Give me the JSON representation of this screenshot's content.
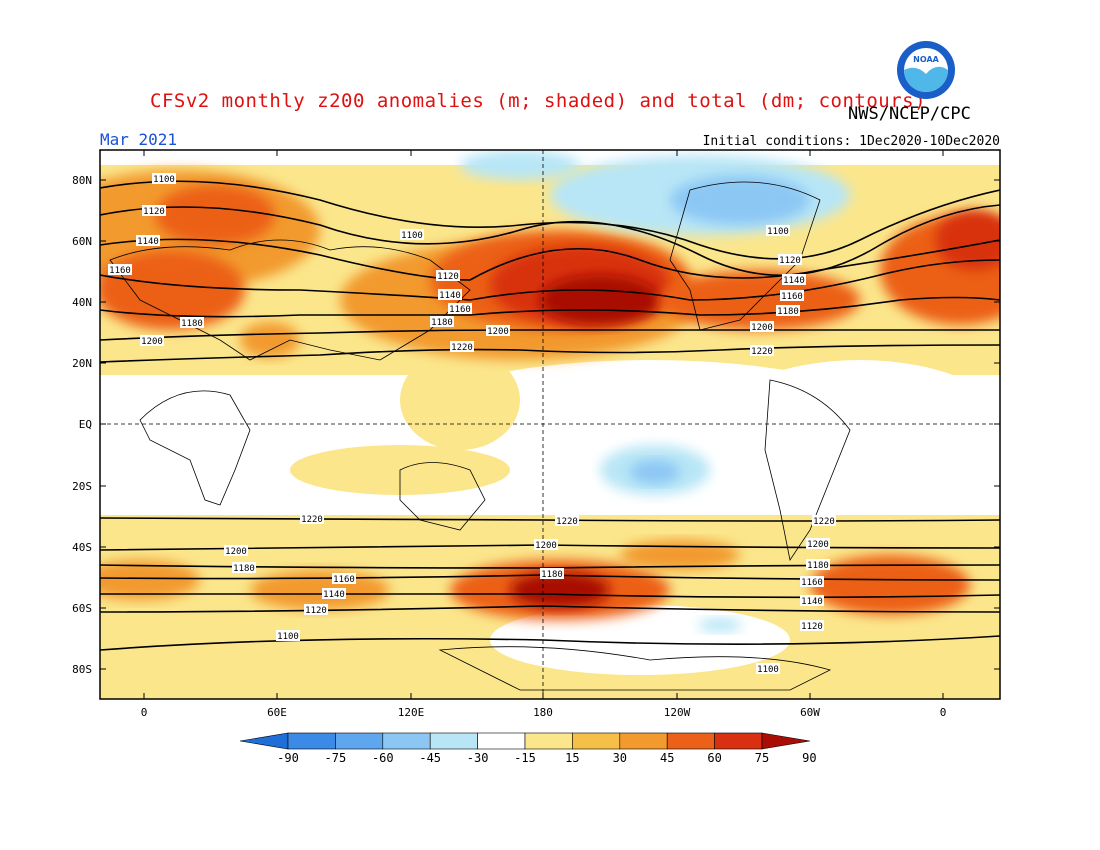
{
  "header": {
    "title": "CFSv2 monthly z200 anomalies (m; shaded) and total (dm; contours)",
    "agency": "NWS/NCEP/CPC",
    "month": "Mar 2021",
    "initial_conditions": "Initial conditions: 1Dec2020-10Dec2020"
  },
  "logo": {
    "text": "NOAA",
    "colors": {
      "outer": "#1a5fc8",
      "inner": "#4fb8e8",
      "bird": "#ffffff"
    }
  },
  "axes": {
    "lat_labels": [
      "80N",
      "60N",
      "40N",
      "20N",
      "EQ",
      "20S",
      "40S",
      "60S",
      "80S"
    ],
    "lon_labels": [
      "0",
      "60E",
      "120E",
      "180",
      "120W",
      "60W",
      "0"
    ]
  },
  "colorbar": {
    "labels": [
      "-90",
      "-75",
      "-60",
      "-45",
      "-30",
      "-15",
      "15",
      "30",
      "45",
      "60",
      "75",
      "90"
    ],
    "colors": [
      "#1e6fd8",
      "#3b8ae6",
      "#5ea6ee",
      "#8cc7f4",
      "#b8e6f6",
      "#ffffff",
      "#fbe68c",
      "#f6c048",
      "#f29a2e",
      "#ec6118",
      "#d83010",
      "#a80e06"
    ]
  },
  "contours": {
    "labels": [
      "1100",
      "1120",
      "1140",
      "1160",
      "1180",
      "1200",
      "1220"
    ]
  }
}
